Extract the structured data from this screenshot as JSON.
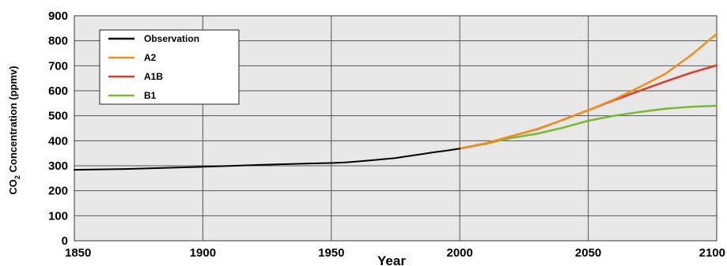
{
  "chart_data": {
    "type": "line",
    "xlabel": "Year",
    "ylabel_main": "CO",
    "ylabel_sub": "2",
    "ylabel_rest": " Concentration (ppmv)",
    "xlim": [
      1850,
      2100
    ],
    "ylim": [
      0,
      900
    ],
    "xticks": [
      1850,
      1900,
      1950,
      2000,
      2050,
      2100
    ],
    "yticks": [
      0,
      100,
      200,
      300,
      400,
      500,
      600,
      700,
      800,
      900
    ],
    "grid": true,
    "legend_position": "top-left",
    "series": [
      {
        "name": "Observation",
        "color": "#000000",
        "x": [
          1850,
          1870,
          1890,
          1900,
          1910,
          1920,
          1930,
          1940,
          1950,
          1955,
          1960,
          1965,
          1970,
          1975,
          1980,
          1985,
          1990,
          1995,
          2000
        ],
        "y": [
          284,
          287,
          293,
          296,
          299,
          303,
          306,
          309,
          311,
          313,
          317,
          321,
          326,
          331,
          339,
          346,
          354,
          361,
          369
        ]
      },
      {
        "name": "A2",
        "color": "#f0901a",
        "x": [
          2000,
          2010,
          2020,
          2030,
          2040,
          2050,
          2060,
          2070,
          2080,
          2090,
          2100
        ],
        "y": [
          369,
          390,
          418,
          447,
          483,
          522,
          565,
          615,
          668,
          742,
          828
        ]
      },
      {
        "name": "A1B",
        "color": "#e03a2a",
        "x": [
          2000,
          2010,
          2020,
          2030,
          2040,
          2050,
          2060,
          2070,
          2080,
          2090,
          2100
        ],
        "y": [
          369,
          389,
          418,
          446,
          483,
          522,
          562,
          600,
          637,
          672,
          702
        ]
      },
      {
        "name": "B1",
        "color": "#7ab82e",
        "x": [
          2000,
          2010,
          2020,
          2030,
          2040,
          2050,
          2060,
          2070,
          2080,
          2090,
          2100
        ],
        "y": [
          369,
          388,
          411,
          428,
          452,
          480,
          500,
          515,
          528,
          536,
          540
        ]
      }
    ]
  }
}
